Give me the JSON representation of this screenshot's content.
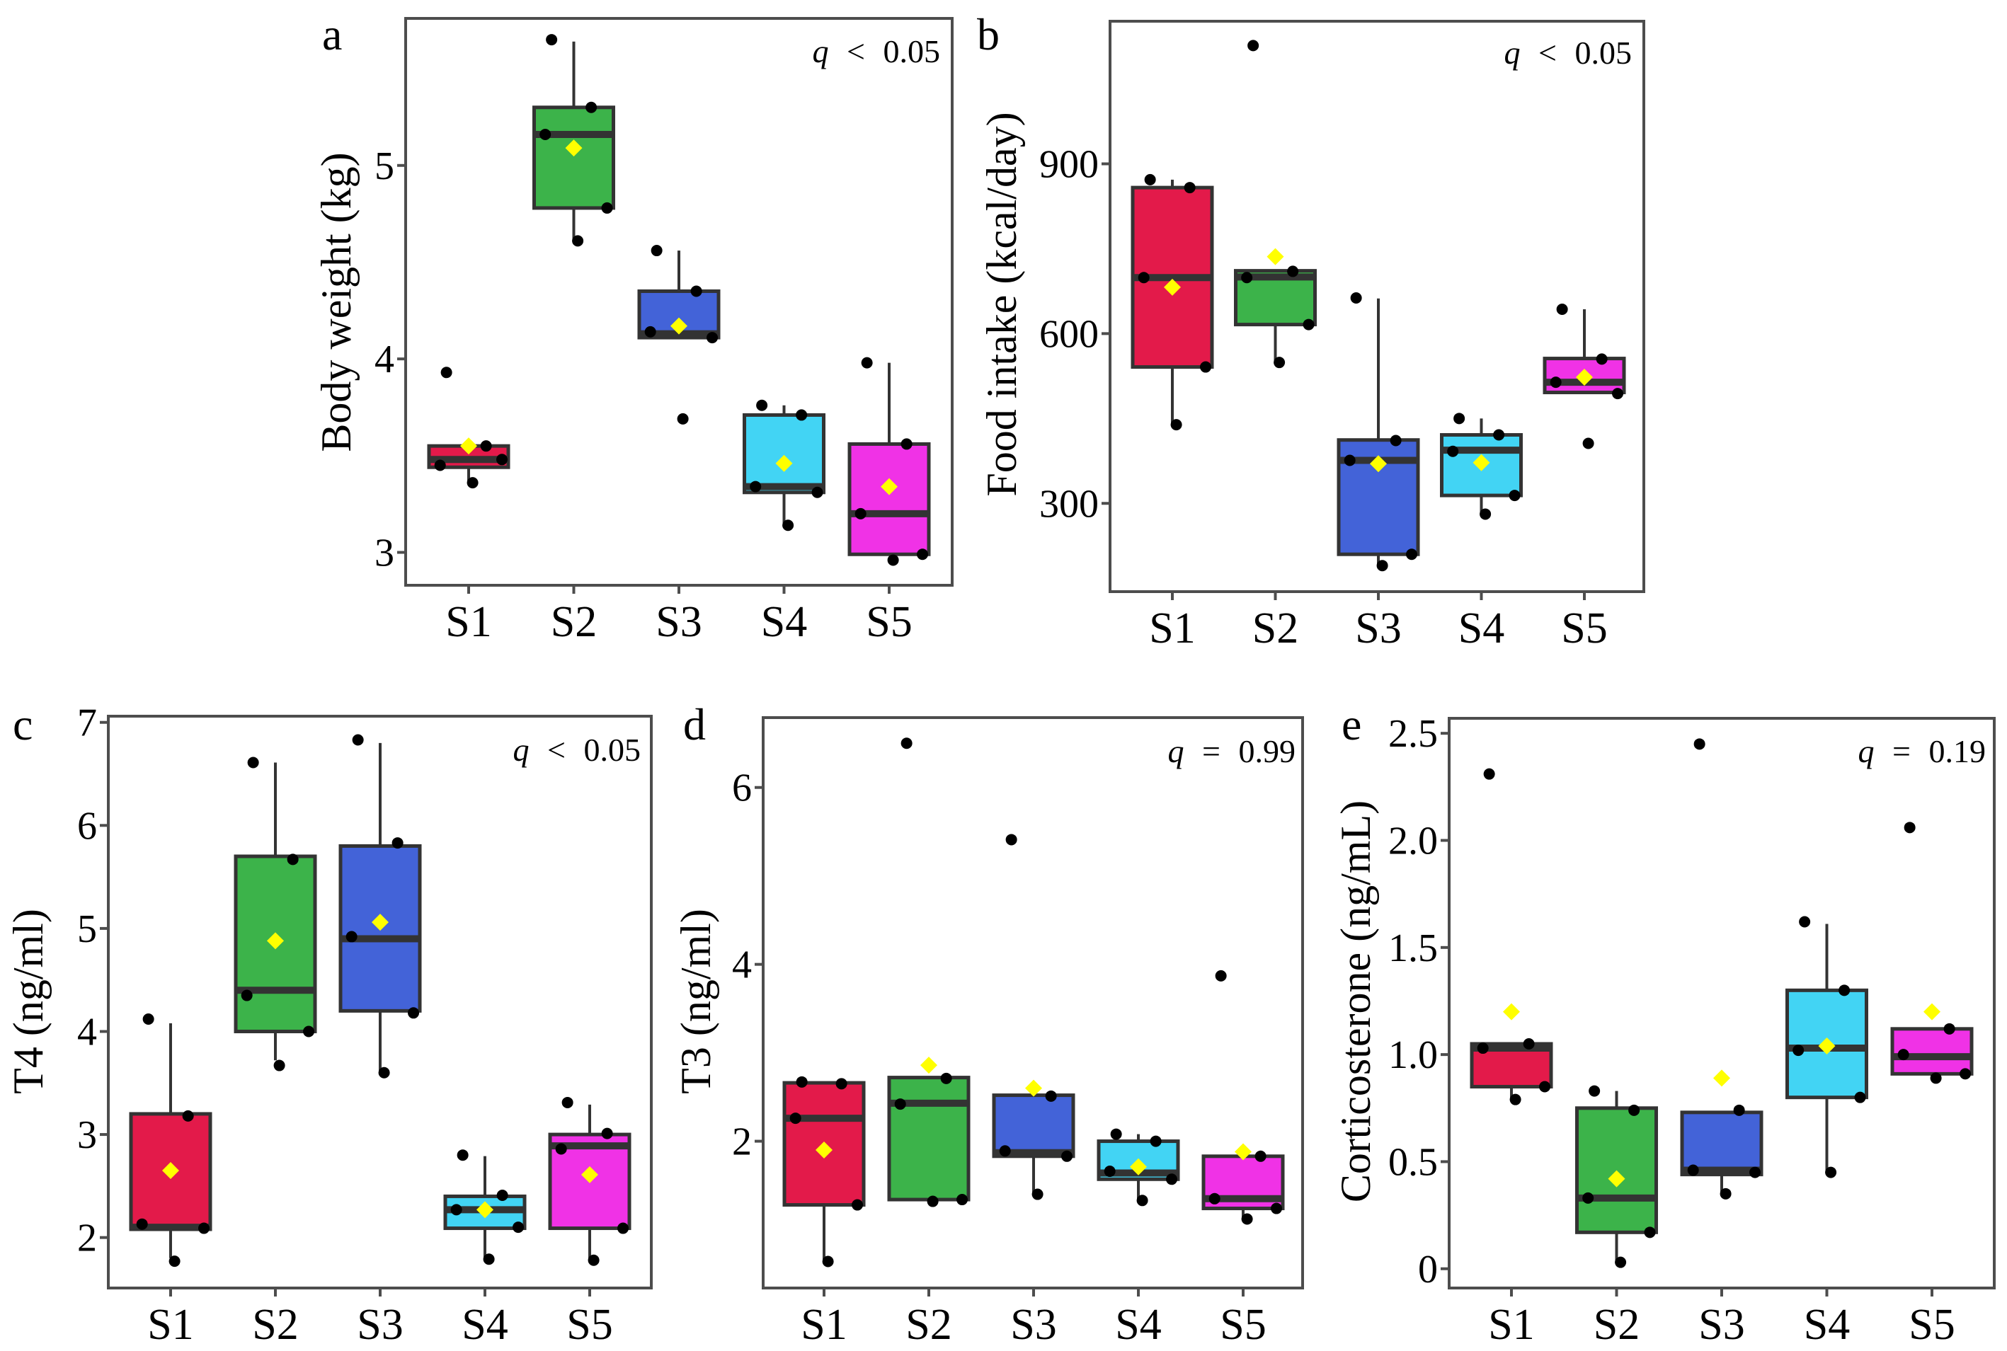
{
  "chart_data": [
    {
      "panel": "a",
      "type": "box",
      "ylabel": "Body weight (kg)",
      "categories": [
        "S1",
        "S2",
        "S3",
        "S4",
        "S5"
      ],
      "yticks": [
        3,
        4,
        5
      ],
      "ytick_labels": [
        "3",
        "4",
        "5"
      ],
      "ylim": [
        2.83,
        5.76
      ],
      "annotation": {
        "symbol": "q",
        "operator": "<",
        "value": "0.05"
      },
      "groups": [
        {
          "name": "S1",
          "q1": 3.44,
          "median": 3.48,
          "q3": 3.55,
          "whisker_low": 3.36,
          "whisker_high": 3.55,
          "mean": 3.55,
          "points": [
            3.93,
            3.55,
            3.45,
            3.48,
            3.36
          ]
        },
        {
          "name": "S2",
          "q1": 4.78,
          "median": 5.16,
          "q3": 5.3,
          "whisker_low": 4.61,
          "whisker_high": 5.64,
          "mean": 5.09,
          "points": [
            5.65,
            5.3,
            5.16,
            4.78,
            4.61
          ]
        },
        {
          "name": "S3",
          "q1": 4.11,
          "median": 4.13,
          "q3": 4.35,
          "whisker_low": 4.11,
          "whisker_high": 4.56,
          "mean": 4.17,
          "points": [
            4.56,
            4.35,
            4.14,
            4.11,
            3.69
          ]
        },
        {
          "name": "S4",
          "q1": 3.31,
          "median": 3.34,
          "q3": 3.71,
          "whisker_low": 3.14,
          "whisker_high": 3.76,
          "mean": 3.46,
          "points": [
            3.76,
            3.71,
            3.34,
            3.31,
            3.14
          ]
        },
        {
          "name": "S5",
          "q1": 2.99,
          "median": 3.2,
          "q3": 3.56,
          "whisker_low": 2.99,
          "whisker_high": 3.98,
          "mean": 3.34,
          "points": [
            3.98,
            3.56,
            3.2,
            2.99,
            2.96
          ]
        }
      ]
    },
    {
      "panel": "b",
      "type": "box",
      "ylabel": "Food intake (kcal/day)",
      "categories": [
        "S1",
        "S2",
        "S3",
        "S4",
        "S5"
      ],
      "yticks": [
        300,
        600,
        900
      ],
      "ytick_labels": [
        "300",
        "600",
        "900"
      ],
      "ylim": [
        144,
        1152
      ],
      "annotation": {
        "symbol": "q",
        "operator": "<",
        "value": "0.05"
      },
      "groups": [
        {
          "name": "S1",
          "q1": 541,
          "median": 699,
          "q3": 858,
          "whisker_low": 439,
          "whisker_high": 872,
          "mean": 682,
          "points": [
            872,
            858,
            699,
            541,
            439
          ]
        },
        {
          "name": "S2",
          "q1": 616,
          "median": 700,
          "q3": 711,
          "whisker_low": 549,
          "whisker_high": 711,
          "mean": 736,
          "points": [
            1109,
            710,
            699,
            616,
            549
          ]
        },
        {
          "name": "S3",
          "q1": 210,
          "median": 376,
          "q3": 412,
          "whisker_low": 190,
          "whisker_high": 662,
          "mean": 370,
          "points": [
            663,
            411,
            376,
            210,
            190
          ]
        },
        {
          "name": "S4",
          "q1": 314,
          "median": 394,
          "q3": 421,
          "whisker_low": 283,
          "whisker_high": 450,
          "mean": 372,
          "points": [
            450,
            421,
            392,
            314,
            281
          ]
        },
        {
          "name": "S5",
          "q1": 496,
          "median": 514,
          "q3": 556,
          "whisker_low": 494,
          "whisker_high": 643,
          "mean": 523,
          "points": [
            643,
            555,
            514,
            494,
            406
          ]
        }
      ]
    },
    {
      "panel": "c",
      "type": "box",
      "ylabel": "T4 (ng/ml)",
      "categories": [
        "S1",
        "S2",
        "S3",
        "S4",
        "S5"
      ],
      "yticks": [
        2,
        3,
        4,
        5,
        6,
        7
      ],
      "ytick_labels": [
        "2",
        "3",
        "4",
        "5",
        "6",
        "7"
      ],
      "ylim": [
        1.51,
        7.06
      ],
      "annotation": {
        "symbol": "q",
        "operator": "<",
        "value": "0.05"
      },
      "groups": [
        {
          "name": "S1",
          "q1": 2.08,
          "median": 2.1,
          "q3": 3.2,
          "whisker_low": 1.8,
          "whisker_high": 4.08,
          "mean": 2.65,
          "points": [
            4.12,
            3.18,
            2.13,
            2.09,
            1.77
          ]
        },
        {
          "name": "S2",
          "q1": 4.0,
          "median": 4.4,
          "q3": 5.7,
          "whisker_low": 3.72,
          "whisker_high": 6.61,
          "mean": 4.88,
          "points": [
            6.61,
            5.67,
            4.35,
            4.0,
            3.67
          ]
        },
        {
          "name": "S3",
          "q1": 4.2,
          "median": 4.9,
          "q3": 5.8,
          "whisker_low": 3.6,
          "whisker_high": 6.8,
          "mean": 5.06,
          "points": [
            6.83,
            5.83,
            4.92,
            4.18,
            3.6
          ]
        },
        {
          "name": "S4",
          "q1": 2.09,
          "median": 2.27,
          "q3": 2.4,
          "whisker_low": 1.8,
          "whisker_high": 2.79,
          "mean": 2.27,
          "points": [
            2.8,
            2.41,
            2.27,
            2.1,
            1.79
          ]
        },
        {
          "name": "S5",
          "q1": 2.09,
          "median": 2.89,
          "q3": 3.0,
          "whisker_low": 1.79,
          "whisker_high": 3.29,
          "mean": 2.61,
          "points": [
            3.31,
            3.01,
            2.86,
            2.09,
            1.78
          ]
        }
      ]
    },
    {
      "panel": "d",
      "type": "box",
      "ylabel": "T3 (ng/ml)",
      "categories": [
        "S1",
        "S2",
        "S3",
        "S4",
        "S5"
      ],
      "yticks": [
        2,
        4,
        6
      ],
      "ytick_labels": [
        "2",
        "4",
        "6"
      ],
      "ylim": [
        0.34,
        6.79
      ],
      "annotation": {
        "symbol": "q",
        "operator": "=",
        "value": "0.99"
      },
      "groups": [
        {
          "name": "S1",
          "q1": 1.28,
          "median": 2.26,
          "q3": 2.66,
          "whisker_low": 0.64,
          "whisker_high": 2.67,
          "mean": 1.9,
          "points": [
            2.67,
            2.65,
            2.26,
            1.28,
            0.64
          ]
        },
        {
          "name": "S2",
          "q1": 1.34,
          "median": 2.43,
          "q3": 2.72,
          "whisker_low": 1.32,
          "whisker_high": 2.72,
          "mean": 2.86,
          "points": [
            6.5,
            2.71,
            2.42,
            1.34,
            1.32
          ]
        },
        {
          "name": "S3",
          "q1": 1.83,
          "median": 1.87,
          "q3": 2.52,
          "whisker_low": 1.4,
          "whisker_high": 2.52,
          "mean": 2.6,
          "points": [
            5.41,
            2.51,
            1.89,
            1.83,
            1.4
          ]
        },
        {
          "name": "S4",
          "q1": 1.57,
          "median": 1.64,
          "q3": 2.0,
          "whisker_low": 1.34,
          "whisker_high": 2.08,
          "mean": 1.71,
          "points": [
            2.08,
            2.0,
            1.66,
            1.57,
            1.33
          ]
        },
        {
          "name": "S5",
          "q1": 1.24,
          "median": 1.35,
          "q3": 1.83,
          "whisker_low": 1.13,
          "whisker_high": 1.83,
          "mean": 1.88,
          "points": [
            3.87,
            1.83,
            1.35,
            1.24,
            1.12
          ]
        }
      ]
    },
    {
      "panel": "e",
      "type": "box",
      "ylabel": "Corticosterone (ng/mL)",
      "categories": [
        "S1",
        "S2",
        "S3",
        "S4",
        "S5"
      ],
      "yticks": [
        0,
        0.5,
        1.0,
        1.5,
        2.0,
        2.5
      ],
      "ytick_labels": [
        "0",
        "0.5",
        "1.0",
        "1.5",
        "2.0",
        "2.5"
      ],
      "ylim": [
        -0.09,
        2.57
      ],
      "annotation": {
        "symbol": "q",
        "operator": "=",
        "value": "0.19"
      },
      "groups": [
        {
          "name": "S1",
          "q1": 0.85,
          "median": 1.03,
          "q3": 1.05,
          "whisker_low": 0.79,
          "whisker_high": 1.05,
          "mean": 1.2,
          "points": [
            2.31,
            1.05,
            1.03,
            0.85,
            0.79
          ]
        },
        {
          "name": "S2",
          "q1": 0.17,
          "median": 0.33,
          "q3": 0.75,
          "whisker_low": 0.03,
          "whisker_high": 0.83,
          "mean": 0.42,
          "points": [
            0.83,
            0.74,
            0.33,
            0.17,
            0.03
          ]
        },
        {
          "name": "S3",
          "q1": 0.44,
          "median": 0.46,
          "q3": 0.73,
          "whisker_low": 0.35,
          "whisker_high": 0.73,
          "mean": 0.89,
          "points": [
            2.45,
            0.74,
            0.46,
            0.45,
            0.35
          ]
        },
        {
          "name": "S4",
          "q1": 0.8,
          "median": 1.03,
          "q3": 1.3,
          "whisker_low": 0.45,
          "whisker_high": 1.61,
          "mean": 1.04,
          "points": [
            1.62,
            1.3,
            1.02,
            0.8,
            0.45
          ]
        },
        {
          "name": "S5",
          "q1": 0.91,
          "median": 0.99,
          "q3": 1.12,
          "whisker_low": 0.89,
          "whisker_high": 1.12,
          "mean": 1.2,
          "points": [
            2.06,
            1.12,
            1.0,
            0.91,
            0.89
          ]
        }
      ]
    }
  ],
  "group_colors": {
    "S1": "#E31A4A",
    "S2": "#3CB34A",
    "S3": "#4363D8",
    "S4": "#42D4F4",
    "S5": "#F032E6"
  },
  "mean_marker_color": "#FFFF00",
  "point_color": "#000000",
  "box_line_color": "#333333"
}
